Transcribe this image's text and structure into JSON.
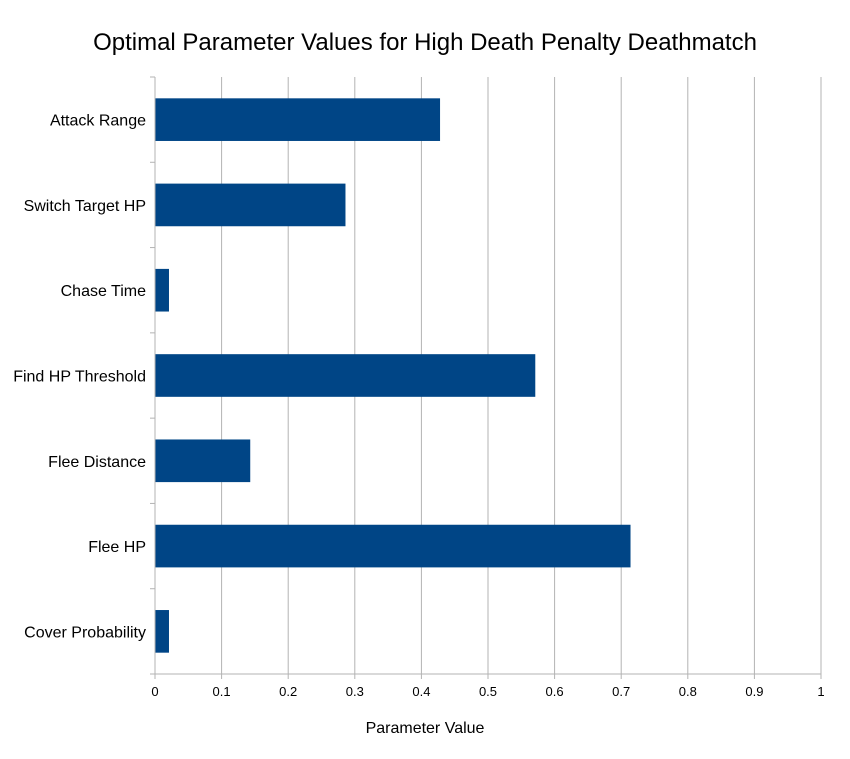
{
  "chart_data": {
    "type": "bar",
    "orientation": "horizontal",
    "title": "Optimal Parameter Values for High Death Penalty Deathmatch",
    "xlabel": "Parameter Value",
    "ylabel": "",
    "categories": [
      "Attack Range",
      "Switch Target HP",
      "Chase Time",
      "Find HP Threshold",
      "Flee Distance",
      "Flee HP",
      "Cover Probability"
    ],
    "values": [
      0.428,
      0.286,
      0.021,
      0.571,
      0.143,
      0.714,
      0.021
    ],
    "xlim": [
      0,
      1
    ],
    "xticks": [
      "0",
      "0.1",
      "0.2",
      "0.3",
      "0.4",
      "0.5",
      "0.6",
      "0.7",
      "0.8",
      "0.9",
      "1"
    ],
    "grid": "vertical",
    "legend": "none",
    "bar_color": "#004586",
    "grid_color": "#b3b3b3"
  }
}
